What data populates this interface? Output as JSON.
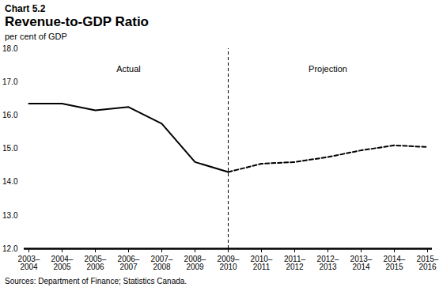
{
  "chart_data": {
    "type": "line",
    "chart_label": "Chart 5.2",
    "title": "Revenue-to-GDP Ratio",
    "ylabel": "per cent of GDP",
    "source": "Sources: Department of Finance; Statistics Canada.",
    "categories": [
      "2003–2004",
      "2004–2005",
      "2005–2006",
      "2006–2007",
      "2007–2008",
      "2008–2009",
      "2009–2010",
      "2010–2011",
      "2011–2012",
      "2012–2013",
      "2013–2014",
      "2014–2015",
      "2015–2016"
    ],
    "series": [
      {
        "name": "Actual",
        "color": "#000000",
        "line_style": "solid",
        "values": [
          16.35,
          16.35,
          16.15,
          16.25,
          15.75,
          14.6,
          14.3,
          null,
          null,
          null,
          null,
          null,
          null
        ]
      },
      {
        "name": "Projection",
        "color": "#000000",
        "line_style": "dashed",
        "values": [
          null,
          null,
          null,
          null,
          null,
          null,
          14.3,
          14.55,
          14.6,
          14.75,
          14.95,
          15.1,
          15.05
        ]
      }
    ],
    "ylim": [
      12,
      18
    ],
    "yticks": [
      12,
      13,
      14,
      15,
      16,
      17,
      18
    ],
    "grid": false
  }
}
